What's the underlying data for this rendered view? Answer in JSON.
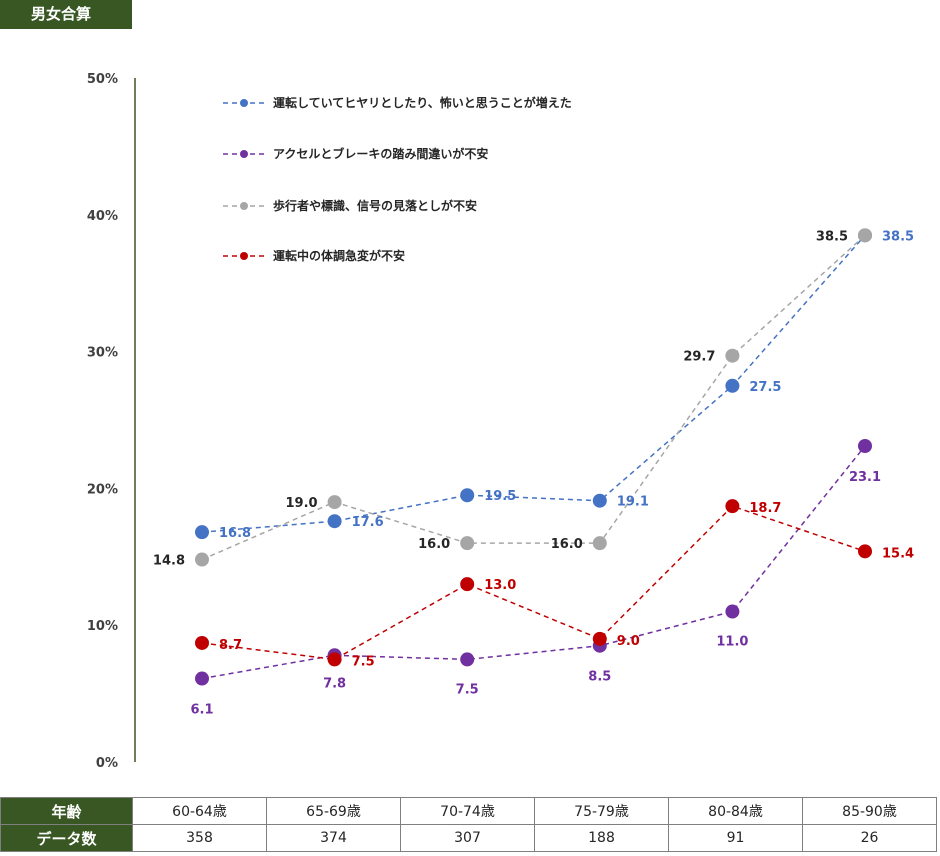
{
  "badge": "男女合算",
  "chart_data": {
    "type": "line",
    "categories": [
      "60-64歳",
      "65-69歳",
      "70-74歳",
      "75-79歳",
      "80-84歳",
      "85-90歳"
    ],
    "ylim": [
      0,
      50
    ],
    "yticks": [
      "0%",
      "10%",
      "20%",
      "30%",
      "40%",
      "50%"
    ],
    "legend_position": "top-left",
    "series": [
      {
        "name": "運転していてヒヤリとしたり、怖いと思うことが増えた",
        "color": "#4472c4",
        "values": [
          16.8,
          17.6,
          19.5,
          19.1,
          27.5,
          38.5
        ],
        "labels": [
          "16.8",
          "17.6",
          "19.5",
          "19.1",
          "27.5",
          "38.5"
        ]
      },
      {
        "name": "アクセルとブレーキの踏み間違いが不安",
        "color": "#7030a0",
        "values": [
          6.1,
          7.8,
          7.5,
          8.5,
          11.0,
          23.1
        ],
        "labels": [
          "6.1",
          "7.8",
          "7.5",
          "8.5",
          "11.0",
          "23.1"
        ]
      },
      {
        "name": "歩行者や標識、信号の見落としが不安",
        "color": "#a6a6a6",
        "values": [
          14.8,
          19.0,
          16.0,
          16.0,
          29.7,
          38.5
        ],
        "labels": [
          "14.8",
          "19.0",
          "16.0",
          "16.0",
          "29.7",
          "38.5"
        ]
      },
      {
        "name": "運転中の体調急変が不安",
        "color": "#c00000",
        "values": [
          8.7,
          7.5,
          13.0,
          9.0,
          18.7,
          15.4
        ],
        "labels": [
          "8.7",
          "7.5",
          "13.0",
          "9.0",
          "18.7",
          "15.4"
        ]
      }
    ]
  },
  "table": {
    "age_header": "年齢",
    "count_header": "データ数",
    "ages": [
      "60-64歳",
      "65-69歳",
      "70-74歳",
      "75-79歳",
      "80-84歳",
      "85-90歳"
    ],
    "counts": [
      "358",
      "374",
      "307",
      "188",
      "91",
      "26"
    ]
  }
}
